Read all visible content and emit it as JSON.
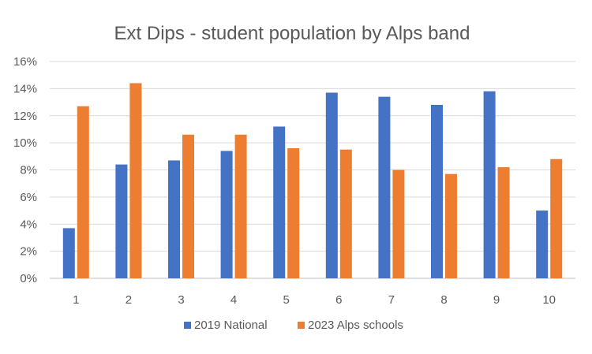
{
  "chart_data": {
    "type": "bar",
    "title": "Ext Dips - student population by Alps band",
    "categories": [
      "1",
      "2",
      "3",
      "4",
      "5",
      "6",
      "7",
      "8",
      "9",
      "10"
    ],
    "series": [
      {
        "name": "2019 National",
        "color": "#4472C4",
        "values": [
          3.7,
          8.4,
          8.7,
          9.4,
          11.2,
          13.7,
          13.4,
          12.8,
          13.8,
          5.0
        ]
      },
      {
        "name": "2023 Alps schools",
        "color": "#ED7D31",
        "values": [
          12.7,
          14.4,
          10.6,
          10.6,
          9.6,
          9.5,
          8.0,
          7.7,
          8.2,
          8.8
        ]
      }
    ],
    "y_ticks": [
      "0%",
      "2%",
      "4%",
      "6%",
      "8%",
      "10%",
      "12%",
      "14%",
      "16%"
    ],
    "ylim": [
      0,
      16
    ],
    "grid": true,
    "legend_position": "bottom"
  }
}
